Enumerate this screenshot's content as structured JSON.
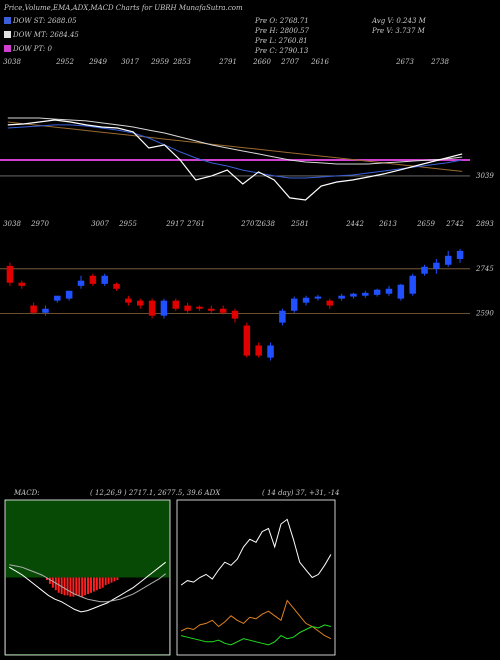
{
  "header": {
    "title": "Price,Volume,EMA,ADX,MACD Charts for UBRH MunafaSutra.com"
  },
  "legend": [
    {
      "label": "DOW ST: 2688.05",
      "color": "#3a5fd8"
    },
    {
      "label": "DOW MT: 2684.45",
      "color": "#e0e0e0"
    },
    {
      "label": "DOW PT: 0",
      "color": "#d040d0"
    }
  ],
  "stats": [
    "Pre O: 2768.71",
    "Pre H: 2800.57",
    "Pre L: 2760.81",
    "Pre C: 2790.13",
    "Avg V: 0.243 M",
    "Pre V: 3.737 M"
  ],
  "indicator_labels": {
    "macd": "MACD:",
    "macd_values": "( 12,26,9 ) 2717.1, 2677.5, 39.6 ADX",
    "adx_values": "( 14 day) 37, +31, -14"
  },
  "chart_data": [
    {
      "type": "line",
      "ylim": [
        2300,
        3300
      ],
      "annotations": [
        "3038",
        "2952",
        "2949",
        "3017",
        "2959",
        "2853",
        "2791",
        "2660",
        "2707",
        "2616",
        "2673",
        "2738",
        "3039"
      ],
      "hlines": [
        {
          "value": 2655,
          "color": "#d040d0"
        },
        {
          "value": 2552,
          "color": "#777777"
        }
      ],
      "series": [
        {
          "color": "#9a6a30",
          "values": [
            2900,
            2889,
            2878,
            2867,
            2856,
            2845,
            2834,
            2823,
            2812,
            2801,
            2790,
            2779,
            2768,
            2757,
            2746,
            2735,
            2724,
            2713,
            2702,
            2691,
            2680,
            2669,
            2658,
            2647,
            2636,
            2625,
            2614,
            2603,
            2592,
            2581
          ]
        },
        {
          "color": "#d8d8d8",
          "values": [
            2926,
            2926,
            2926,
            2919,
            2913,
            2907,
            2894,
            2881,
            2868,
            2848,
            2829,
            2803,
            2778,
            2752,
            2732,
            2713,
            2694,
            2674,
            2655,
            2642,
            2636,
            2629,
            2629,
            2629,
            2636,
            2642,
            2649,
            2655,
            2661,
            2674
          ]
        },
        {
          "color": "#3a5fd8",
          "values": [
            2861,
            2868,
            2874,
            2881,
            2881,
            2874,
            2861,
            2848,
            2829,
            2797,
            2752,
            2707,
            2668,
            2636,
            2616,
            2590,
            2571,
            2552,
            2539,
            2539,
            2545,
            2552,
            2558,
            2571,
            2584,
            2597,
            2610,
            2623,
            2636,
            2655
          ]
        },
        {
          "color": "#ffffff",
          "values": [
            2881,
            2887,
            2900,
            2913,
            2900,
            2881,
            2868,
            2861,
            2836,
            2732,
            2752,
            2655,
            2526,
            2552,
            2590,
            2500,
            2578,
            2526,
            2410,
            2397,
            2487,
            2513,
            2526,
            2545,
            2565,
            2590,
            2616,
            2642,
            2668,
            2694
          ]
        }
      ]
    },
    {
      "type": "candlestick",
      "ylim": [
        2015,
        2893
      ],
      "yticks": [
        2745,
        2590
      ],
      "grid": true,
      "up_color": "#2050ff",
      "down_color": "#e00000",
      "annotations": [
        "3038",
        "2970",
        "3007",
        "2955",
        "2917",
        "2761",
        "2707",
        "2638",
        "2581",
        "2442",
        "2613",
        "2659",
        "2742",
        "2893"
      ],
      "open": [
        2755,
        2697,
        2618,
        2593,
        2635,
        2642,
        2686,
        2721,
        2693,
        2693,
        2642,
        2635,
        2635,
        2583,
        2635,
        2618,
        2614,
        2607,
        2607,
        2600,
        2549,
        2480,
        2438,
        2559,
        2600,
        2628,
        2642,
        2635,
        2642,
        2649,
        2652,
        2655,
        2659,
        2642,
        2659,
        2728,
        2745,
        2759,
        2779
      ],
      "high": [
        2766,
        2704,
        2628,
        2618,
        2645,
        2669,
        2721,
        2728,
        2728,
        2697,
        2652,
        2642,
        2642,
        2642,
        2642,
        2628,
        2618,
        2618,
        2618,
        2607,
        2559,
        2490,
        2490,
        2607,
        2649,
        2652,
        2655,
        2642,
        2659,
        2662,
        2669,
        2676,
        2686,
        2693,
        2728,
        2759,
        2779,
        2807,
        2814
      ],
      "low": [
        2686,
        2676,
        2587,
        2583,
        2628,
        2635,
        2676,
        2686,
        2686,
        2669,
        2618,
        2607,
        2573,
        2573,
        2600,
        2593,
        2600,
        2593,
        2587,
        2559,
        2438,
        2438,
        2428,
        2549,
        2593,
        2618,
        2635,
        2607,
        2635,
        2642,
        2645,
        2649,
        2652,
        2635,
        2652,
        2721,
        2728,
        2752,
        2766
      ],
      "close": [
        2697,
        2686,
        2593,
        2607,
        2652,
        2669,
        2704,
        2693,
        2721,
        2676,
        2628,
        2618,
        2583,
        2635,
        2607,
        2600,
        2607,
        2600,
        2593,
        2573,
        2445,
        2445,
        2480,
        2600,
        2642,
        2645,
        2649,
        2618,
        2652,
        2659,
        2662,
        2673,
        2676,
        2690,
        2721,
        2752,
        2766,
        2790,
        2807
      ]
    },
    {
      "type": "macd",
      "ylim": [
        -60,
        60
      ],
      "color": "#ff2020",
      "values": [
        -2,
        -5,
        -8,
        -10,
        -12,
        -13,
        -14,
        -14,
        -15,
        -15,
        -14,
        -14,
        -15,
        -14,
        -13,
        -12,
        -11,
        -10,
        -9,
        -8,
        -6,
        -5,
        -4,
        -3,
        -2
      ],
      "series": [
        {
          "color": "#ffffff",
          "values": [
            8,
            5,
            2,
            -2,
            -6,
            -10,
            -14,
            -17,
            -19,
            -22,
            -25,
            -27,
            -26,
            -24,
            -22,
            -20,
            -17,
            -14,
            -11,
            -8,
            -4,
            0,
            4,
            8,
            12
          ]
        },
        {
          "color": "#b0b0b0",
          "values": [
            10,
            9,
            8,
            6,
            4,
            2,
            -1,
            -4,
            -7,
            -10,
            -13,
            -15,
            -17,
            -18,
            -19,
            -19,
            -18,
            -17,
            -15,
            -13,
            -10,
            -7,
            -4,
            -1,
            3
          ]
        }
      ]
    },
    {
      "type": "line",
      "ylim": [
        0,
        100
      ],
      "series": [
        {
          "color": "#ffffff",
          "values": [
            45,
            48,
            47,
            50,
            52,
            49,
            55,
            60,
            58,
            62,
            70,
            75,
            73,
            80,
            82,
            70,
            85,
            88,
            75,
            60,
            55,
            50,
            52,
            58,
            65
          ]
        },
        {
          "color": "#e08020",
          "values": [
            15,
            17,
            16,
            19,
            20,
            22,
            18,
            21,
            25,
            22,
            20,
            24,
            23,
            26,
            28,
            25,
            22,
            35,
            30,
            25,
            20,
            18,
            15,
            12,
            10
          ]
        },
        {
          "color": "#20e020",
          "values": [
            12,
            11,
            10,
            9,
            8,
            8,
            9,
            7,
            6,
            8,
            10,
            9,
            8,
            7,
            6,
            8,
            12,
            10,
            11,
            14,
            16,
            18,
            17,
            19,
            18
          ]
        }
      ]
    }
  ]
}
